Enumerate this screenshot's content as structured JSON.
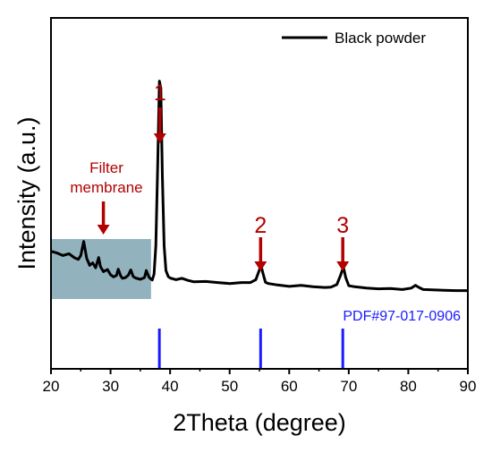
{
  "chart_data": {
    "type": "line",
    "xlabel": "2Theta (degree)",
    "ylabel": "Intensity (a.u.)",
    "xlim": [
      20,
      90
    ],
    "ylim": [
      0,
      100
    ],
    "xticks": [
      20,
      30,
      40,
      50,
      60,
      70,
      80,
      90
    ],
    "grid": false,
    "legend_position": "top-right",
    "series": [
      {
        "name": "Black powder",
        "color": "#000000",
        "x": [
          20,
          21,
          22,
          23,
          24,
          24.6,
          25,
          25.5,
          26,
          26.5,
          27,
          27.5,
          28,
          28.3,
          28.8,
          29.5,
          30,
          30.5,
          31,
          31.3,
          31.7,
          32,
          32.5,
          33,
          33.4,
          33.8,
          34.2,
          35,
          35.7,
          36,
          36.5,
          37,
          37.3,
          37.6,
          37.9,
          38.2,
          38.45,
          38.7,
          39,
          39.3,
          39.7,
          40,
          41,
          42,
          43,
          44,
          46,
          48,
          50,
          52,
          53.5,
          54.4,
          55,
          55.25,
          55.6,
          56,
          56.5,
          58,
          60,
          62,
          64,
          66,
          67,
          68,
          68.6,
          69.1,
          69.5,
          70,
          71,
          73,
          75,
          77,
          79,
          80.5,
          81.2,
          81.8,
          82.5,
          84,
          86,
          88,
          90
        ],
        "y": [
          33.5,
          33,
          32.3,
          32.8,
          31.6,
          31.2,
          32.3,
          36.3,
          31.5,
          29.5,
          30.2,
          28.8,
          31.7,
          29.1,
          27.7,
          28.3,
          26.8,
          26.2,
          26.6,
          28.4,
          26.5,
          25.8,
          26,
          26.7,
          28.2,
          26.3,
          25.9,
          25.5,
          26,
          28,
          26,
          25.3,
          27,
          35,
          57,
          82,
          80,
          55,
          35,
          28,
          26.3,
          25.9,
          25.4,
          25.8,
          25.2,
          24.8,
          24.9,
          24.6,
          24.3,
          24.6,
          24.6,
          25.4,
          28.2,
          29.5,
          27.2,
          24.7,
          24.3,
          23.9,
          23.5,
          23.8,
          23.4,
          23.2,
          23.3,
          24,
          26.5,
          29,
          26,
          23.7,
          23.4,
          23,
          22.8,
          22.9,
          22.6,
          23,
          23.8,
          23.2,
          22.6,
          22.5,
          22.4,
          22.3,
          22.3
        ]
      }
    ],
    "reference": {
      "label": "PDF#97-017-0906",
      "color": "#1a1aff",
      "positions": [
        38.2,
        55.2,
        69.0
      ]
    },
    "annotations": [
      {
        "text": "1",
        "x": 38.3,
        "color": "#b30000"
      },
      {
        "text": "2",
        "x": 55.2,
        "color": "#b30000"
      },
      {
        "text": "3",
        "x": 69.0,
        "color": "#b30000"
      }
    ],
    "filter_annotation": {
      "line1": "Filter",
      "line2": "membrane",
      "color": "#b30000",
      "arrow_x": 28.8,
      "shade_x": [
        20,
        36.8
      ],
      "shade_color": "#7fa6b3"
    }
  }
}
